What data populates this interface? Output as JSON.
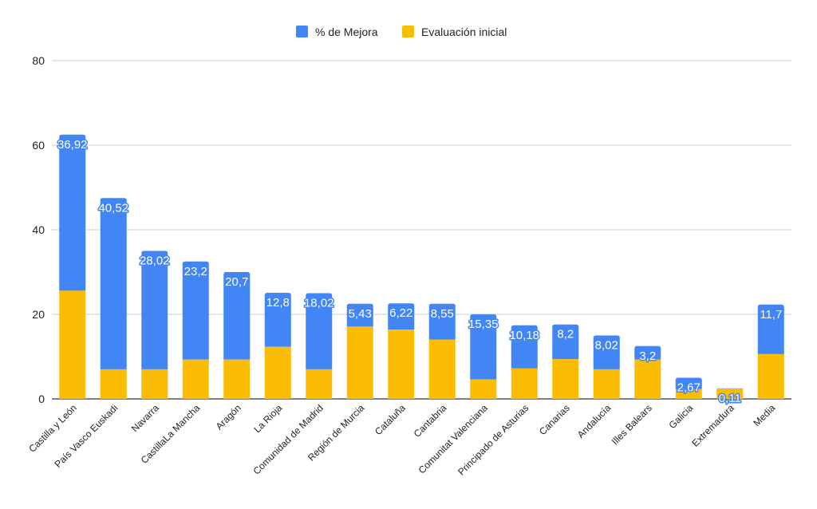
{
  "chart_data": {
    "type": "bar",
    "stacked": true,
    "categories": [
      "Castilla y León",
      "País Vasco  Euskadi",
      "Navarra",
      "CastillaLa Mancha",
      "Aragón",
      "La Rioja",
      "Comunidad de Madrid",
      "Región de Murcia",
      "Cataluña",
      "Cantabria",
      "Comunitat Valenciana",
      "Principado de Asturias",
      "Canarias",
      "Andalucía",
      "Illes Balears",
      "Galicia",
      "Extremadura",
      "Media"
    ],
    "series": [
      {
        "name": "Evaluación inicial",
        "color": "#fbbc04",
        "values": [
          25.6,
          7.0,
          7.0,
          9.3,
          9.3,
          12.3,
          7.0,
          17.1,
          16.4,
          14.0,
          4.6,
          7.2,
          9.4,
          7.0,
          9.3,
          2.3,
          2.4,
          10.6
        ],
        "labels": []
      },
      {
        "name": "% de Mejora",
        "color": "#4285f4",
        "values": [
          36.9,
          40.5,
          28.0,
          23.2,
          20.7,
          12.8,
          18.0,
          5.4,
          6.2,
          8.5,
          15.4,
          10.2,
          8.2,
          8.0,
          3.2,
          2.7,
          0.1,
          11.7
        ],
        "labels": [
          "36,92",
          "40,52",
          "28,02",
          "23,2",
          "20,7",
          "12,8",
          "18,02",
          "5,43",
          "6,22",
          "8,55",
          "15,35",
          "10,18",
          "8,2",
          "8,02",
          "3,2",
          "2,67",
          "0,11",
          "11,7"
        ]
      }
    ],
    "legend": {
      "position": "top",
      "order": [
        "% de Mejora",
        "Evaluación inicial"
      ]
    },
    "ylim": [
      0,
      80
    ],
    "yticks": [
      "0",
      "20",
      "40",
      "60",
      "80"
    ],
    "ytick_values": [
      0,
      20,
      40,
      60,
      80
    ],
    "grid": true,
    "gridline_color": "#cccccc",
    "axis_color": "#333333"
  }
}
